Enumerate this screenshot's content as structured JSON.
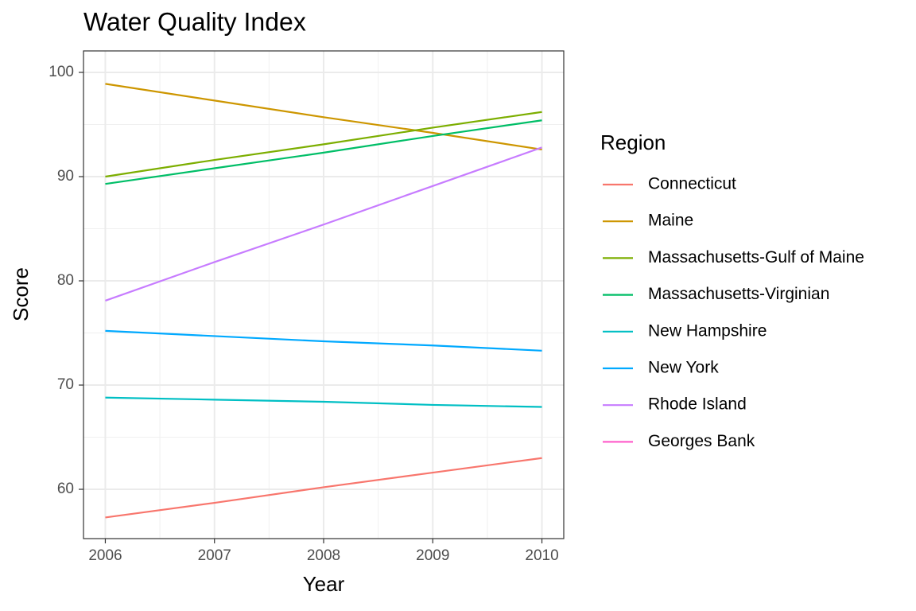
{
  "chart_data": {
    "type": "line",
    "title": "Water Quality Index",
    "x_label": "Year",
    "y_label": "Score",
    "legend_title": "Region",
    "x": [
      2006,
      2007,
      2008,
      2009,
      2010
    ],
    "series": [
      {
        "name": "Connecticut",
        "color": "#F8766D",
        "values": [
          57.3,
          58.7,
          60.2,
          61.6,
          63.0
        ]
      },
      {
        "name": "Maine",
        "color": "#CD9600",
        "values": [
          98.9,
          97.3,
          95.7,
          94.2,
          92.6
        ]
      },
      {
        "name": "Massachusetts-Gulf of Maine",
        "color": "#7CAE00",
        "values": [
          90.0,
          91.6,
          93.1,
          94.7,
          96.2
        ]
      },
      {
        "name": "Massachusetts-Virginian",
        "color": "#00BE67",
        "values": [
          89.3,
          90.8,
          92.3,
          93.9,
          95.4
        ]
      },
      {
        "name": "New Hampshire",
        "color": "#00BFC4",
        "values": [
          68.8,
          68.6,
          68.4,
          68.1,
          67.9
        ]
      },
      {
        "name": "New York",
        "color": "#00A9FF",
        "values": [
          75.2,
          74.7,
          74.2,
          73.8,
          73.3
        ]
      },
      {
        "name": "Rhode Island",
        "color": "#C77CFF",
        "values": [
          78.1,
          81.8,
          85.4,
          89.1,
          92.8
        ]
      },
      {
        "name": "Georges Bank",
        "color": "#FF61CC",
        "values": [
          null,
          null,
          null,
          null,
          null
        ]
      }
    ],
    "xlim": [
      2005.8,
      2010.2
    ],
    "xticks": [
      2006,
      2007,
      2008,
      2009,
      2010
    ],
    "ylim": [
      55.27,
      102.06
    ],
    "yticks": [
      60,
      70,
      80,
      90,
      100
    ],
    "grid": true,
    "legend": "right"
  }
}
